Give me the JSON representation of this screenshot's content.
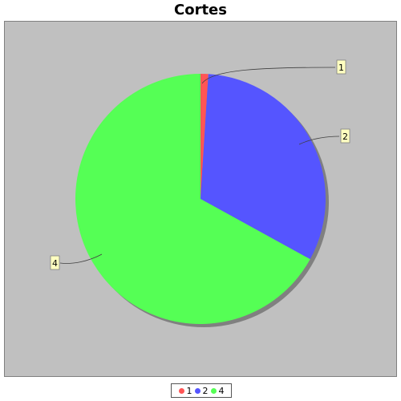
{
  "chart_data": {
    "type": "pie",
    "title": "Cortes",
    "categories": [
      "1",
      "2",
      "4"
    ],
    "values": [
      1,
      32,
      67
    ],
    "colors": [
      "#ff5555",
      "#5555ff",
      "#55ff55"
    ],
    "labels_shown": true,
    "legend": "bottom",
    "plot_background": "#c0c0c0"
  }
}
